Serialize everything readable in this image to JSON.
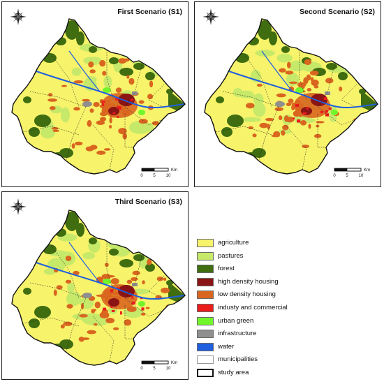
{
  "panels": [
    {
      "title": "First Scenario (S1)"
    },
    {
      "title": "Second Scenario (S2)"
    },
    {
      "title": "Third Scenario (S3)"
    }
  ],
  "scale": {
    "ticks": [
      "0",
      "5",
      "10"
    ],
    "unit": "Km"
  },
  "compass_icon": "north-arrow-compass-rose",
  "legend": [
    {
      "label": "agriculture",
      "color": "#f7f36b"
    },
    {
      "label": "pastures",
      "color": "#c6e96a"
    },
    {
      "label": "forest",
      "color": "#3f6d10"
    },
    {
      "label": "high density housing",
      "color": "#8b1414"
    },
    {
      "label": "low density housing",
      "color": "#d9661f"
    },
    {
      "label": "industy and commercial",
      "color": "#ea1c1c"
    },
    {
      "label": "urban green",
      "color": "#73f52b"
    },
    {
      "label": "infrastructure",
      "color": "#8f8f8f"
    },
    {
      "label": "water",
      "color": "#1f5fe0"
    },
    {
      "label": "municipalities",
      "color": "#ffffff"
    },
    {
      "label": "study area",
      "color": "#ffffff"
    }
  ]
}
